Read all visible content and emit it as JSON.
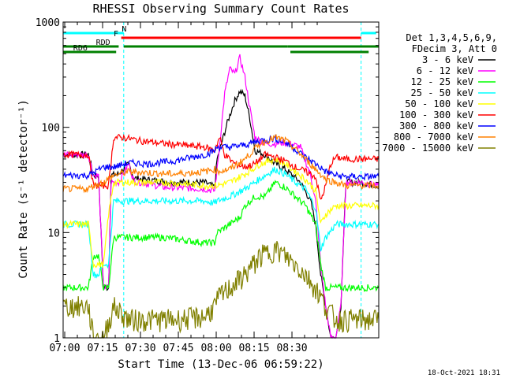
{
  "chart_data": {
    "type": "line",
    "title": "RHESSI Observing Summary Count Rates",
    "xlabel": "Start Time (13-Dec-06 06:59:22)",
    "ylabel": "Count Rate (s⁻¹ detector⁻¹)",
    "yscale": "log",
    "ylim": [
      1,
      1000
    ],
    "xlim_min": [
      0,
      125
    ],
    "x_tick_labels": [
      "07:00",
      "07:15",
      "07:30",
      "07:45",
      "08:00",
      "08:15",
      "08:30"
    ],
    "y_tick_labels": [
      "1",
      "10",
      "100",
      "1000"
    ],
    "legend_header": [
      "Det 1,3,4,5,6,9,",
      "FDecim 3, Att 0"
    ],
    "legend_placement": "right",
    "timestamp": "18-Oct-2021 18:31",
    "flag_bars": [
      {
        "label": "N",
        "color": "#00ffff",
        "segments": [
          [
            0,
            24
          ],
          [
            118,
            124
          ]
        ]
      },
      {
        "label": "F",
        "color": "#ff0000",
        "segments": [
          [
            23,
            118
          ]
        ]
      },
      {
        "label": "RDD",
        "color": "#008000",
        "segments": [
          [
            0,
            22
          ],
          [
            24,
            89
          ],
          [
            89,
            125
          ]
        ]
      },
      {
        "label": "RD6",
        "color": "#008000",
        "segments": [
          [
            0,
            21
          ],
          [
            90,
            121
          ]
        ]
      }
    ],
    "series": [
      {
        "name": "3 - 6 keV",
        "color": "#000000",
        "points": [
          [
            0,
            55
          ],
          [
            10,
            55
          ],
          [
            12,
            35
          ],
          [
            14,
            35
          ],
          [
            16,
            3
          ],
          [
            18,
            3
          ],
          [
            19,
            35
          ],
          [
            22,
            36
          ],
          [
            26,
            45
          ],
          [
            28,
            33
          ],
          [
            32,
            32
          ],
          [
            44,
            30
          ],
          [
            56,
            30
          ],
          [
            60,
            27
          ],
          [
            61,
            50
          ],
          [
            65,
            110
          ],
          [
            68,
            180
          ],
          [
            70,
            220
          ],
          [
            72,
            200
          ],
          [
            74,
            120
          ],
          [
            76,
            60
          ],
          [
            80,
            55
          ],
          [
            84,
            45
          ],
          [
            88,
            40
          ],
          [
            94,
            30
          ],
          [
            98,
            20
          ],
          [
            100,
            12
          ],
          [
            102,
            4
          ],
          [
            104,
            2
          ],
          [
            106,
            1
          ],
          [
            108,
            1
          ],
          [
            110,
            2
          ],
          [
            112,
            30
          ],
          [
            118,
            30
          ],
          [
            125,
            28
          ]
        ]
      },
      {
        "name": "6 - 12 keV",
        "color": "#ff00ff",
        "points": [
          [
            0,
            55
          ],
          [
            10,
            55
          ],
          [
            12,
            35
          ],
          [
            14,
            35
          ],
          [
            16,
            3
          ],
          [
            18,
            3
          ],
          [
            19,
            30
          ],
          [
            22,
            30
          ],
          [
            26,
            45
          ],
          [
            28,
            31
          ],
          [
            40,
            27
          ],
          [
            56,
            26
          ],
          [
            60,
            25
          ],
          [
            61,
            40
          ],
          [
            64,
            210
          ],
          [
            66,
            360
          ],
          [
            68,
            320
          ],
          [
            70,
            460
          ],
          [
            72,
            300
          ],
          [
            74,
            150
          ],
          [
            76,
            80
          ],
          [
            80,
            70
          ],
          [
            84,
            70
          ],
          [
            88,
            72
          ],
          [
            94,
            65
          ],
          [
            98,
            35
          ],
          [
            100,
            20
          ],
          [
            102,
            5
          ],
          [
            104,
            2
          ],
          [
            106,
            1
          ],
          [
            108,
            1
          ],
          [
            110,
            2
          ],
          [
            112,
            30
          ],
          [
            118,
            30
          ],
          [
            125,
            28
          ]
        ]
      },
      {
        "name": "12 - 25 keV",
        "color": "#00ff00",
        "points": [
          [
            0,
            3
          ],
          [
            10,
            3
          ],
          [
            12,
            6
          ],
          [
            14,
            6
          ],
          [
            16,
            3
          ],
          [
            18,
            3
          ],
          [
            20,
            9
          ],
          [
            40,
            9
          ],
          [
            56,
            8
          ],
          [
            60,
            8
          ],
          [
            61,
            10
          ],
          [
            66,
            12
          ],
          [
            70,
            14
          ],
          [
            72,
            18
          ],
          [
            76,
            22
          ],
          [
            80,
            22
          ],
          [
            84,
            30
          ],
          [
            88,
            27
          ],
          [
            92,
            22
          ],
          [
            96,
            18
          ],
          [
            100,
            12
          ],
          [
            102,
            5
          ],
          [
            104,
            3
          ],
          [
            108,
            3
          ],
          [
            112,
            3
          ],
          [
            125,
            3
          ]
        ]
      },
      {
        "name": "25 - 50 keV",
        "color": "#00ffff",
        "points": [
          [
            0,
            12
          ],
          [
            10,
            12
          ],
          [
            12,
            4
          ],
          [
            14,
            4
          ],
          [
            16,
            5
          ],
          [
            18,
            5
          ],
          [
            20,
            20
          ],
          [
            40,
            20
          ],
          [
            56,
            20
          ],
          [
            60,
            19
          ],
          [
            61,
            20
          ],
          [
            66,
            22
          ],
          [
            72,
            26
          ],
          [
            80,
            35
          ],
          [
            84,
            40
          ],
          [
            88,
            36
          ],
          [
            92,
            30
          ],
          [
            96,
            26
          ],
          [
            100,
            17
          ],
          [
            102,
            7
          ],
          [
            104,
            9
          ],
          [
            108,
            12
          ],
          [
            112,
            12
          ],
          [
            125,
            12
          ]
        ]
      },
      {
        "name": "50 - 100 keV",
        "color": "#ffff00",
        "points": [
          [
            0,
            12
          ],
          [
            10,
            12
          ],
          [
            12,
            5
          ],
          [
            14,
            5
          ],
          [
            16,
            5
          ],
          [
            18,
            15
          ],
          [
            20,
            30
          ],
          [
            40,
            30
          ],
          [
            56,
            28
          ],
          [
            60,
            28
          ],
          [
            61,
            28
          ],
          [
            66,
            30
          ],
          [
            72,
            36
          ],
          [
            78,
            45
          ],
          [
            84,
            50
          ],
          [
            88,
            45
          ],
          [
            92,
            38
          ],
          [
            96,
            32
          ],
          [
            100,
            25
          ],
          [
            102,
            12
          ],
          [
            104,
            15
          ],
          [
            108,
            18
          ],
          [
            112,
            18
          ],
          [
            125,
            18
          ]
        ]
      },
      {
        "name": "100 - 300 keV",
        "color": "#ff0000",
        "points": [
          [
            0,
            55
          ],
          [
            10,
            55
          ],
          [
            12,
            28
          ],
          [
            14,
            28
          ],
          [
            16,
            28
          ],
          [
            18,
            28
          ],
          [
            20,
            80
          ],
          [
            24,
            80
          ],
          [
            30,
            75
          ],
          [
            40,
            70
          ],
          [
            56,
            65
          ],
          [
            60,
            60
          ],
          [
            61,
            70
          ],
          [
            62,
            80
          ],
          [
            64,
            55
          ],
          [
            68,
            45
          ],
          [
            72,
            42
          ],
          [
            76,
            45
          ],
          [
            80,
            55
          ],
          [
            84,
            52
          ],
          [
            88,
            48
          ],
          [
            92,
            42
          ],
          [
            96,
            38
          ],
          [
            100,
            34
          ],
          [
            102,
            20
          ],
          [
            104,
            28
          ],
          [
            106,
            45
          ],
          [
            108,
            52
          ],
          [
            112,
            50
          ],
          [
            125,
            50
          ]
        ]
      },
      {
        "name": "300 - 800 keV",
        "color": "#0000ff",
        "points": [
          [
            0,
            35
          ],
          [
            10,
            35
          ],
          [
            12,
            37
          ],
          [
            16,
            42
          ],
          [
            20,
            42
          ],
          [
            26,
            46
          ],
          [
            34,
            45
          ],
          [
            44,
            48
          ],
          [
            56,
            55
          ],
          [
            60,
            60
          ],
          [
            61,
            65
          ],
          [
            66,
            65
          ],
          [
            72,
            68
          ],
          [
            78,
            75
          ],
          [
            84,
            78
          ],
          [
            88,
            72
          ],
          [
            92,
            62
          ],
          [
            96,
            52
          ],
          [
            100,
            45
          ],
          [
            104,
            38
          ],
          [
            108,
            35
          ],
          [
            112,
            34
          ],
          [
            125,
            34
          ]
        ]
      },
      {
        "name": "800 - 7000 keV",
        "color": "#ff8000",
        "points": [
          [
            0,
            26
          ],
          [
            10,
            26
          ],
          [
            12,
            28
          ],
          [
            16,
            30
          ],
          [
            20,
            35
          ],
          [
            26,
            38
          ],
          [
            34,
            37
          ],
          [
            44,
            36
          ],
          [
            56,
            38
          ],
          [
            60,
            40
          ],
          [
            61,
            38
          ],
          [
            66,
            40
          ],
          [
            72,
            50
          ],
          [
            78,
            70
          ],
          [
            84,
            80
          ],
          [
            88,
            75
          ],
          [
            92,
            62
          ],
          [
            96,
            50
          ],
          [
            100,
            40
          ],
          [
            104,
            32
          ],
          [
            108,
            30
          ],
          [
            112,
            28
          ],
          [
            125,
            28
          ]
        ]
      },
      {
        "name": "7000 - 15000 keV",
        "color": "#808000",
        "points": [
          [
            0,
            2
          ],
          [
            10,
            2
          ],
          [
            12,
            1
          ],
          [
            16,
            1
          ],
          [
            20,
            2
          ],
          [
            26,
            1.5
          ],
          [
            34,
            1.5
          ],
          [
            44,
            1.5
          ],
          [
            56,
            1.6
          ],
          [
            60,
            2
          ],
          [
            62,
            2.5
          ],
          [
            66,
            3
          ],
          [
            72,
            4
          ],
          [
            78,
            6
          ],
          [
            84,
            7
          ],
          [
            88,
            6
          ],
          [
            92,
            5
          ],
          [
            96,
            4
          ],
          [
            100,
            3
          ],
          [
            104,
            2
          ],
          [
            108,
            1.5
          ],
          [
            112,
            1.5
          ],
          [
            125,
            1.5
          ]
        ]
      }
    ]
  }
}
